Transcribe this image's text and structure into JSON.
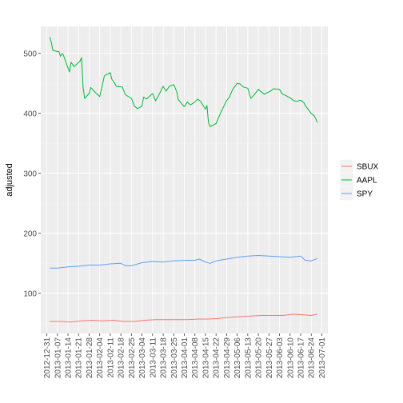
{
  "chart_data": {
    "type": "line",
    "title": "",
    "xlabel": "",
    "ylabel": "adjusted",
    "grid": true,
    "legend_position": "right",
    "xlim": [
      "2012-12-27",
      "2013-07-05"
    ],
    "ylim": [
      33,
      545
    ],
    "y_ticks": [
      100,
      200,
      300,
      400,
      500
    ],
    "x_ticks": [
      "2012-12-31",
      "2013-01-07",
      "2013-01-14",
      "2013-01-21",
      "2013-01-28",
      "2013-02-04",
      "2013-02-11",
      "2013-02-18",
      "2013-02-25",
      "2013-03-04",
      "2013-03-11",
      "2013-03-18",
      "2013-03-25",
      "2013-04-01",
      "2013-04-08",
      "2013-04-15",
      "2013-04-22",
      "2013-04-29",
      "2013-05-06",
      "2013-05-13",
      "2013-05-20",
      "2013-05-27",
      "2013-06-03",
      "2013-06-10",
      "2013-06-17",
      "2013-06-24",
      "2013-07-01"
    ],
    "series": [
      {
        "name": "SBUX",
        "color": "#F8766D",
        "points": [
          [
            "2013-01-02",
            53
          ],
          [
            "2013-01-09",
            53
          ],
          [
            "2013-01-16",
            52
          ],
          [
            "2013-01-23",
            54
          ],
          [
            "2013-01-30",
            55
          ],
          [
            "2013-02-06",
            54
          ],
          [
            "2013-02-13",
            55
          ],
          [
            "2013-02-20",
            53
          ],
          [
            "2013-02-27",
            53
          ],
          [
            "2013-03-06",
            55
          ],
          [
            "2013-03-13",
            56
          ],
          [
            "2013-03-20",
            56
          ],
          [
            "2013-03-27",
            56
          ],
          [
            "2013-04-03",
            56
          ],
          [
            "2013-04-10",
            57
          ],
          [
            "2013-04-17",
            57
          ],
          [
            "2013-04-24",
            58
          ],
          [
            "2013-05-01",
            60
          ],
          [
            "2013-05-08",
            61
          ],
          [
            "2013-05-15",
            62
          ],
          [
            "2013-05-22",
            63
          ],
          [
            "2013-05-29",
            63
          ],
          [
            "2013-06-05",
            63
          ],
          [
            "2013-06-12",
            65
          ],
          [
            "2013-06-19",
            64
          ],
          [
            "2013-06-24",
            63
          ],
          [
            "2013-06-28",
            65
          ]
        ]
      },
      {
        "name": "AAPL",
        "color": "#00BA38",
        "points": [
          [
            "2013-01-02",
            527
          ],
          [
            "2013-01-03",
            518
          ],
          [
            "2013-01-04",
            505
          ],
          [
            "2013-01-07",
            503
          ],
          [
            "2013-01-08",
            503
          ],
          [
            "2013-01-09",
            495
          ],
          [
            "2013-01-10",
            500
          ],
          [
            "2013-01-11",
            497
          ],
          [
            "2013-01-14",
            476
          ],
          [
            "2013-01-15",
            469
          ],
          [
            "2013-01-16",
            485
          ],
          [
            "2013-01-17",
            482
          ],
          [
            "2013-01-18",
            478
          ],
          [
            "2013-01-22",
            487
          ],
          [
            "2013-01-23",
            493
          ],
          [
            "2013-01-24",
            444
          ],
          [
            "2013-01-25",
            425
          ],
          [
            "2013-01-28",
            433
          ],
          [
            "2013-01-29",
            443
          ],
          [
            "2013-01-30",
            441
          ],
          [
            "2013-02-01",
            435
          ],
          [
            "2013-02-04",
            428
          ],
          [
            "2013-02-06",
            450
          ],
          [
            "2013-02-07",
            462
          ],
          [
            "2013-02-08",
            464
          ],
          [
            "2013-02-11",
            468
          ],
          [
            "2013-02-12",
            457
          ],
          [
            "2013-02-14",
            450
          ],
          [
            "2013-02-15",
            445
          ],
          [
            "2013-02-19",
            444
          ],
          [
            "2013-02-21",
            431
          ],
          [
            "2013-02-25",
            425
          ],
          [
            "2013-02-27",
            412
          ],
          [
            "2013-03-01",
            408
          ],
          [
            "2013-03-04",
            412
          ],
          [
            "2013-03-05",
            427
          ],
          [
            "2013-03-07",
            424
          ],
          [
            "2013-03-11",
            433
          ],
          [
            "2013-03-13",
            421
          ],
          [
            "2013-03-15",
            430
          ],
          [
            "2013-03-18",
            445
          ],
          [
            "2013-03-20",
            437
          ],
          [
            "2013-03-22",
            445
          ],
          [
            "2013-03-25",
            448
          ],
          [
            "2013-03-27",
            436
          ],
          [
            "2013-03-28",
            423
          ],
          [
            "2013-04-01",
            411
          ],
          [
            "2013-04-03",
            419
          ],
          [
            "2013-04-05",
            414
          ],
          [
            "2013-04-08",
            419
          ],
          [
            "2013-04-10",
            424
          ],
          [
            "2013-04-12",
            419
          ],
          [
            "2013-04-15",
            407
          ],
          [
            "2013-04-16",
            413
          ],
          [
            "2013-04-17",
            385
          ],
          [
            "2013-04-18",
            378
          ],
          [
            "2013-04-19",
            379
          ],
          [
            "2013-04-22",
            383
          ],
          [
            "2013-04-24",
            395
          ],
          [
            "2013-04-26",
            406
          ],
          [
            "2013-04-29",
            421
          ],
          [
            "2013-05-01",
            428
          ],
          [
            "2013-05-03",
            440
          ],
          [
            "2013-05-06",
            450
          ],
          [
            "2013-05-08",
            449
          ],
          [
            "2013-05-10",
            444
          ],
          [
            "2013-05-13",
            442
          ],
          [
            "2013-05-15",
            425
          ],
          [
            "2013-05-17",
            430
          ],
          [
            "2013-05-20",
            440
          ],
          [
            "2013-05-22",
            436
          ],
          [
            "2013-05-24",
            432
          ],
          [
            "2013-05-28",
            437
          ],
          [
            "2013-05-30",
            441
          ],
          [
            "2013-06-03",
            440
          ],
          [
            "2013-06-05",
            432
          ],
          [
            "2013-06-07",
            430
          ],
          [
            "2013-06-10",
            426
          ],
          [
            "2013-06-12",
            422
          ],
          [
            "2013-06-14",
            420
          ],
          [
            "2013-06-17",
            422
          ],
          [
            "2013-06-19",
            418
          ],
          [
            "2013-06-21",
            410
          ],
          [
            "2013-06-24",
            400
          ],
          [
            "2013-06-26",
            396
          ],
          [
            "2013-06-27",
            391
          ],
          [
            "2013-06-28",
            385
          ]
        ]
      },
      {
        "name": "SPY",
        "color": "#619CFF",
        "points": [
          [
            "2013-01-02",
            142
          ],
          [
            "2013-01-07",
            142
          ],
          [
            "2013-01-14",
            144
          ],
          [
            "2013-01-21",
            145
          ],
          [
            "2013-01-28",
            147
          ],
          [
            "2013-02-04",
            147
          ],
          [
            "2013-02-11",
            149
          ],
          [
            "2013-02-18",
            150
          ],
          [
            "2013-02-21",
            146
          ],
          [
            "2013-02-25",
            146
          ],
          [
            "2013-03-04",
            151
          ],
          [
            "2013-03-11",
            153
          ],
          [
            "2013-03-18",
            152
          ],
          [
            "2013-03-25",
            154
          ],
          [
            "2013-04-01",
            155
          ],
          [
            "2013-04-08",
            155
          ],
          [
            "2013-04-11",
            157
          ],
          [
            "2013-04-15",
            152
          ],
          [
            "2013-04-18",
            150
          ],
          [
            "2013-04-22",
            154
          ],
          [
            "2013-04-29",
            157
          ],
          [
            "2013-05-06",
            160
          ],
          [
            "2013-05-13",
            162
          ],
          [
            "2013-05-20",
            163
          ],
          [
            "2013-05-27",
            162
          ],
          [
            "2013-06-03",
            161
          ],
          [
            "2013-06-10",
            160
          ],
          [
            "2013-06-17",
            162
          ],
          [
            "2013-06-20",
            155
          ],
          [
            "2013-06-24",
            154
          ],
          [
            "2013-06-28",
            158
          ]
        ]
      }
    ]
  }
}
